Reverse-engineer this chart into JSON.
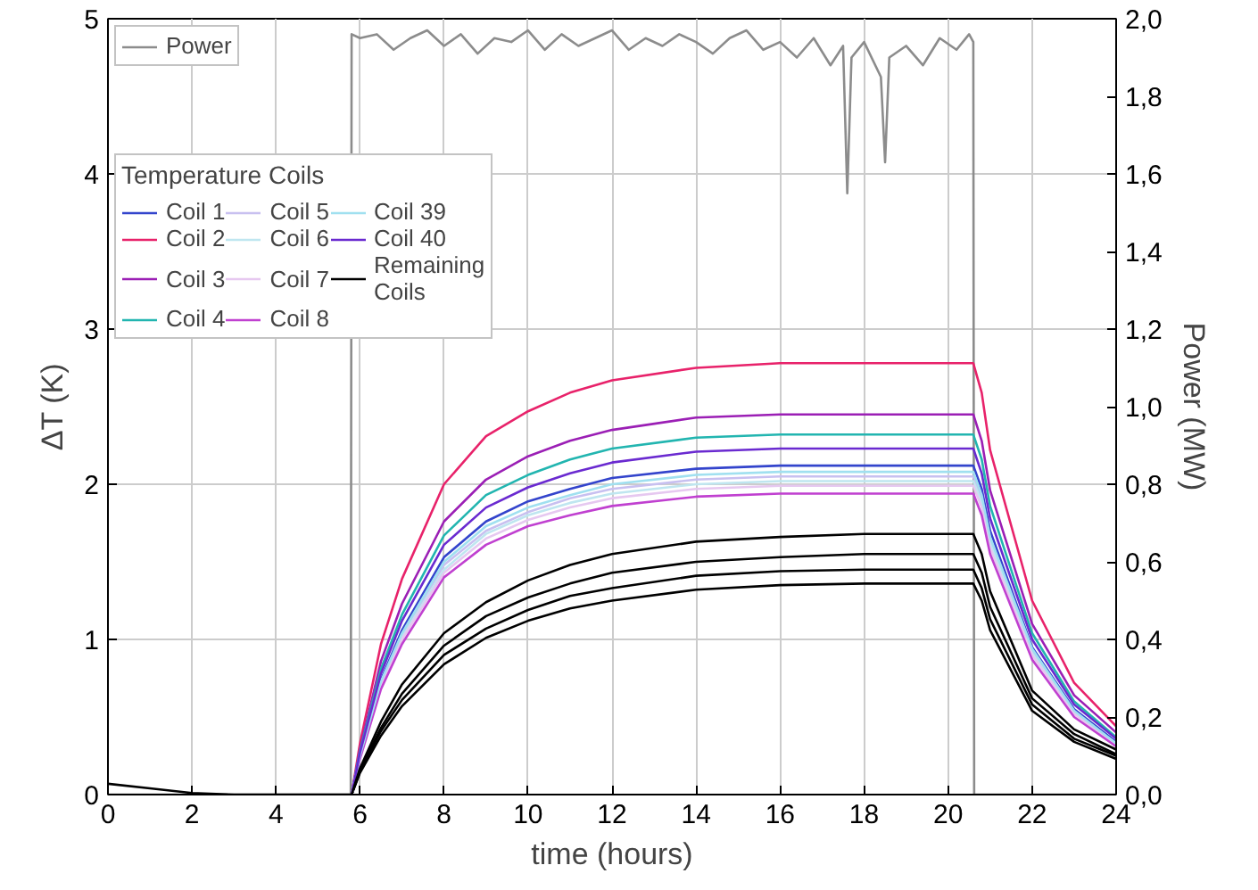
{
  "chart_data": {
    "type": "line",
    "xlabel": "time (hours)",
    "ylabel": "ΔT (K)",
    "y2label": "Power (MW)",
    "legend_title": "Temperature Coils",
    "legend": "top left",
    "grid": true,
    "line_style": "solid",
    "xlim": [
      0,
      24
    ],
    "xticks": [
      0,
      2,
      4,
      6,
      8,
      10,
      12,
      14,
      16,
      18,
      20,
      22,
      24
    ],
    "ylim": [
      0,
      5
    ],
    "yticks": [
      0,
      1,
      2,
      3,
      4,
      5
    ],
    "y2lim": [
      0,
      2
    ],
    "y2ticks": [
      {
        "value": 0,
        "label": "0,0"
      },
      {
        "value": 0.2,
        "label": "0,2"
      },
      {
        "value": 0.4,
        "label": "0,4"
      },
      {
        "value": 0.6,
        "label": "0,6"
      },
      {
        "value": 0.8,
        "label": "0,8"
      },
      {
        "value": 1.0,
        "label": "1,0"
      },
      {
        "value": 1.2,
        "label": "1,2"
      },
      {
        "value": 1.4,
        "label": "1,4"
      },
      {
        "value": 1.6,
        "label": "1,6"
      },
      {
        "value": 1.8,
        "label": "1,8"
      },
      {
        "value": 2.0,
        "label": "2,0"
      }
    ],
    "x": [
      5.8,
      6,
      6.5,
      7,
      8,
      9,
      10,
      11,
      12,
      14,
      16,
      18,
      20.6,
      20.8,
      21,
      22,
      23,
      24
    ],
    "series": [
      {
        "name": "Power",
        "color": "#8c8c8c",
        "axis": "y2",
        "x": [
          0,
          5.78,
          5.8,
          6.0,
          6.4,
          6.8,
          7.2,
          7.6,
          8.0,
          8.4,
          8.8,
          9.2,
          9.6,
          10.0,
          10.4,
          10.8,
          11.2,
          11.6,
          12.0,
          12.4,
          12.8,
          13.2,
          13.6,
          14.0,
          14.4,
          14.8,
          15.2,
          15.6,
          16.0,
          16.4,
          16.8,
          17.2,
          17.5,
          17.6,
          17.7,
          18.0,
          18.4,
          18.5,
          18.6,
          19.0,
          19.4,
          19.8,
          20.2,
          20.5,
          20.6,
          20.62,
          24
        ],
        "values": [
          0,
          0,
          1.96,
          1.95,
          1.96,
          1.92,
          1.95,
          1.97,
          1.93,
          1.96,
          1.91,
          1.95,
          1.94,
          1.97,
          1.92,
          1.96,
          1.93,
          1.95,
          1.97,
          1.92,
          1.95,
          1.93,
          1.96,
          1.94,
          1.91,
          1.95,
          1.97,
          1.92,
          1.94,
          1.9,
          1.95,
          1.88,
          1.93,
          1.55,
          1.9,
          1.94,
          1.85,
          1.63,
          1.9,
          1.93,
          1.88,
          1.95,
          1.92,
          1.96,
          1.94,
          0,
          0
        ]
      },
      {
        "color": "#000000",
        "values": [
          0,
          0.14,
          0.38,
          0.57,
          0.84,
          1.01,
          1.12,
          1.2,
          1.25,
          1.32,
          1.35,
          1.36,
          1.36,
          1.25,
          1.06,
          0.54,
          0.34,
          0.23
        ]
      },
      {
        "color": "#000000",
        "values": [
          0,
          0.15,
          0.41,
          0.61,
          0.9,
          1.07,
          1.19,
          1.28,
          1.33,
          1.41,
          1.44,
          1.45,
          1.45,
          1.33,
          1.13,
          0.58,
          0.36,
          0.25
        ]
      },
      {
        "color": "#000000",
        "values": [
          0,
          0.16,
          0.43,
          0.65,
          0.96,
          1.15,
          1.27,
          1.36,
          1.43,
          1.5,
          1.53,
          1.55,
          1.55,
          1.43,
          1.21,
          0.62,
          0.39,
          0.26
        ]
      },
      {
        "name": "Coil 1",
        "color": "#3344cc",
        "values": [
          0,
          0.25,
          0.74,
          1.06,
          1.53,
          1.76,
          1.89,
          1.97,
          2.04,
          2.1,
          2.12,
          2.12,
          2.12,
          1.97,
          1.7,
          0.95,
          0.55,
          0.34
        ]
      },
      {
        "name": "Coil 2",
        "color": "#e8226a",
        "values": [
          0,
          0.33,
          0.97,
          1.39,
          2.0,
          2.31,
          2.47,
          2.59,
          2.67,
          2.75,
          2.78,
          2.78,
          2.78,
          2.59,
          2.22,
          1.25,
          0.72,
          0.44
        ]
      },
      {
        "name": "Coil 3",
        "color": "#9b1fb5",
        "values": [
          0,
          0.29,
          0.86,
          1.23,
          1.76,
          2.03,
          2.18,
          2.28,
          2.35,
          2.43,
          2.45,
          2.45,
          2.45,
          2.28,
          1.96,
          1.1,
          0.64,
          0.4
        ]
      },
      {
        "name": "Coil 4",
        "color": "#22b5b0",
        "values": [
          0,
          0.28,
          0.81,
          1.16,
          1.67,
          1.93,
          2.06,
          2.16,
          2.23,
          2.3,
          2.32,
          2.32,
          2.32,
          2.16,
          1.86,
          1.04,
          0.6,
          0.37
        ]
      },
      {
        "name": "Coil 5",
        "color": "#c8c0f0",
        "values": [
          0,
          0.25,
          0.72,
          1.03,
          1.48,
          1.7,
          1.82,
          1.91,
          1.97,
          2.03,
          2.05,
          2.05,
          2.05,
          1.91,
          1.64,
          0.92,
          0.53,
          0.33
        ]
      },
      {
        "name": "Coil 6",
        "color": "#bfe6f0",
        "values": [
          0,
          0.24,
          0.71,
          1.01,
          1.45,
          1.68,
          1.8,
          1.88,
          1.94,
          2.0,
          2.02,
          2.02,
          2.02,
          1.88,
          1.62,
          0.91,
          0.53,
          0.32
        ]
      },
      {
        "name": "Coil 7",
        "color": "#e6c8f0",
        "values": [
          0,
          0.24,
          0.7,
          1.0,
          1.43,
          1.65,
          1.77,
          1.85,
          1.91,
          1.97,
          1.99,
          1.99,
          1.99,
          1.85,
          1.59,
          0.9,
          0.52,
          0.32
        ]
      },
      {
        "name": "Coil 8",
        "color": "#c040d0",
        "values": [
          0,
          0.23,
          0.68,
          0.97,
          1.4,
          1.61,
          1.73,
          1.8,
          1.86,
          1.92,
          1.94,
          1.94,
          1.94,
          1.8,
          1.55,
          0.87,
          0.5,
          0.31
        ]
      },
      {
        "name": "Coil 39",
        "color": "#a0e0f0",
        "values": [
          0,
          0.25,
          0.73,
          1.04,
          1.5,
          1.73,
          1.85,
          1.93,
          2.0,
          2.06,
          2.08,
          2.08,
          2.08,
          1.93,
          1.66,
          0.94,
          0.54,
          0.33
        ]
      },
      {
        "name": "Coil 40",
        "color": "#6a2ad0",
        "values": [
          0,
          0.27,
          0.78,
          1.12,
          1.61,
          1.85,
          1.98,
          2.07,
          2.14,
          2.21,
          2.23,
          2.23,
          2.23,
          2.07,
          1.78,
          1.0,
          0.58,
          0.36
        ]
      },
      {
        "name": "Remaining\nCoils",
        "color": "#000000",
        "x": [
          0,
          1,
          2,
          3,
          5.8,
          6,
          6.5,
          7,
          8,
          9,
          10,
          11,
          12,
          14,
          16,
          18,
          20.6,
          20.8,
          21,
          22,
          23,
          24
        ],
        "values": [
          0.07,
          0.04,
          0.01,
          0,
          0,
          0.17,
          0.47,
          0.71,
          1.04,
          1.24,
          1.38,
          1.48,
          1.55,
          1.63,
          1.66,
          1.68,
          1.68,
          1.55,
          1.31,
          0.67,
          0.42,
          0.29
        ]
      }
    ]
  }
}
